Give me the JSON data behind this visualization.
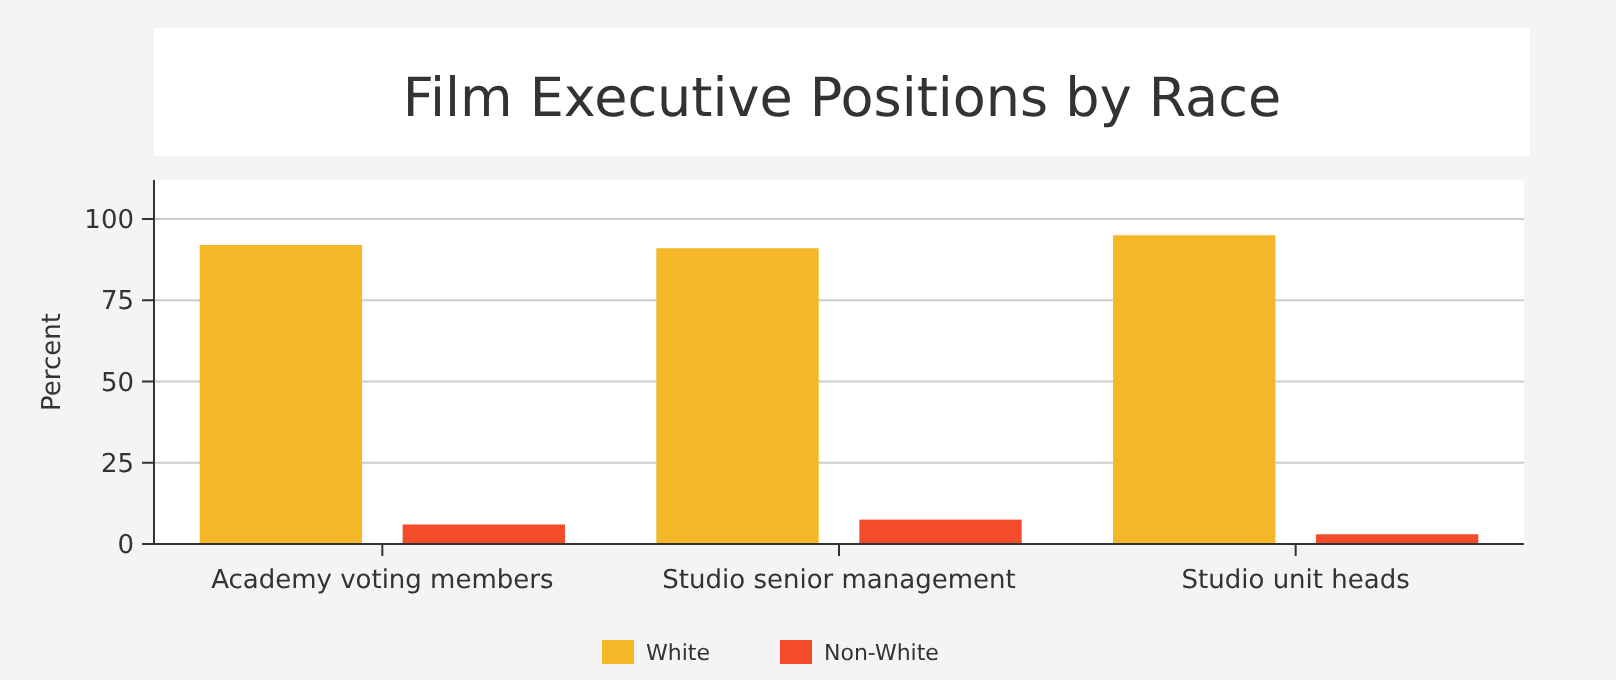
{
  "chart_data": {
    "type": "bar",
    "title": "Film Executive Positions by Race",
    "ylabel": "Percent",
    "categories": [
      "Academy voting members",
      "Studio senior management",
      "Studio unit heads"
    ],
    "series": [
      {
        "name": "White",
        "color": "#f5b829",
        "values": [
          92,
          91,
          95
        ]
      },
      {
        "name": "Non-White",
        "color": "#f44b2b",
        "values": [
          6,
          7.5,
          3
        ]
      }
    ],
    "ylim": [
      0,
      112
    ],
    "yticks": [
      0,
      25,
      50,
      75,
      100
    ],
    "grid": "y",
    "legend": "bottom"
  }
}
